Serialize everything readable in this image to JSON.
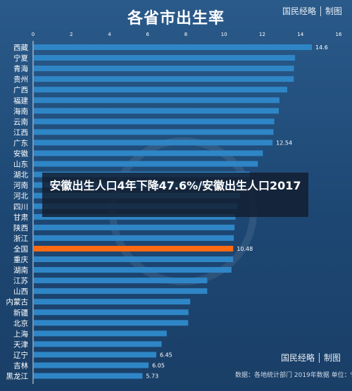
{
  "header": {
    "title": "各省市出生率",
    "brand_name": "国民经略",
    "brand_suffix": "制图"
  },
  "banner": {
    "text": "安徽出生人口4年下降47.6%/安徽出生人口2017"
  },
  "footer": {
    "brand_name": "国民经略",
    "brand_suffix": "制图",
    "source": "数据：各地统计部门 2019年数据   单位：‰"
  },
  "colors": {
    "bar": "#2f86c6",
    "highlight": "#ff6a13",
    "background": "#1f4e79",
    "text": "#ffffff"
  },
  "chart_data": {
    "type": "bar",
    "orientation": "horizontal",
    "title": "各省市出生率",
    "xlim": [
      0,
      16
    ],
    "x_ticks": [
      0,
      2,
      4,
      6,
      8,
      10,
      12,
      14,
      16
    ],
    "highlight_category": "全国",
    "categories": [
      "西藏",
      "宁夏",
      "青海",
      "贵州",
      "广西",
      "福建",
      "海南",
      "云南",
      "江西",
      "广东",
      "安徽",
      "山东",
      "湖北",
      "河南",
      "河北",
      "四川",
      "甘肃",
      "陕西",
      "浙江",
      "全国",
      "重庆",
      "湖南",
      "江苏",
      "山西",
      "内蒙古",
      "新疆",
      "北京",
      "上海",
      "天津",
      "辽宁",
      "吉林",
      "黑龙江"
    ],
    "values": [
      14.6,
      13.72,
      13.66,
      13.65,
      13.31,
      12.9,
      12.87,
      12.63,
      12.59,
      12.54,
      12.03,
      11.77,
      11.35,
      11.02,
      10.83,
      10.7,
      10.6,
      10.55,
      10.51,
      10.48,
      10.48,
      10.39,
      9.12,
      9.12,
      8.23,
      8.14,
      8.12,
      7.0,
      6.73,
      6.45,
      6.05,
      5.73
    ],
    "data_labels": {
      "西藏": "14.6",
      "广东": "12.54",
      "全国": "10.48",
      "辽宁": "6.45",
      "吉林": "6.05",
      "黑龙江": "5.73"
    }
  }
}
